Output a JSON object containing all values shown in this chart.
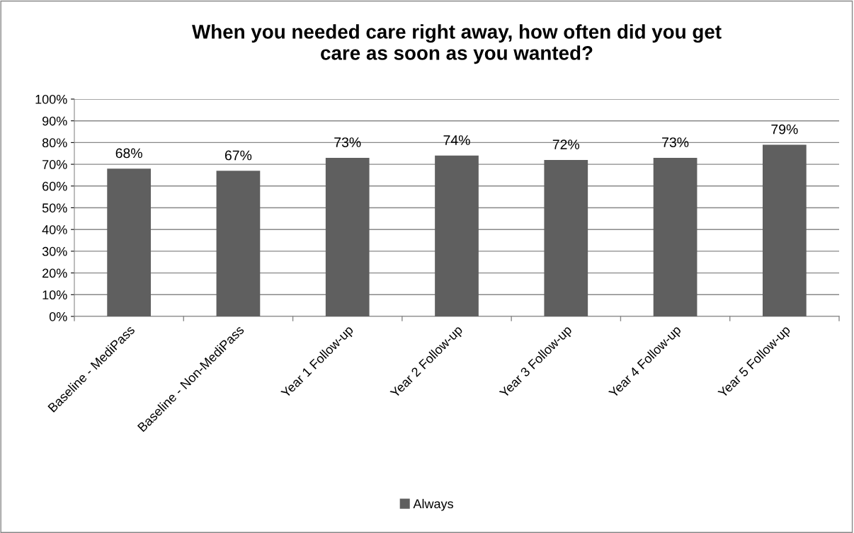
{
  "chart_data": {
    "type": "bar",
    "title": "When you needed care right away, how often did you get\ncare as soon as you wanted?",
    "categories": [
      "Baseline - MediPass",
      "Baseline - Non-MediPass",
      "Year 1 Follow-up",
      "Year 2 Follow-up",
      "Year 3 Follow-up",
      "Year 4 Follow-up",
      "Year 5 Follow-up"
    ],
    "series": [
      {
        "name": "Always",
        "color": "#5f5f5f",
        "values": [
          68,
          67,
          73,
          74,
          72,
          73,
          79
        ],
        "value_labels": [
          "68%",
          "67%",
          "73%",
          "74%",
          "72%",
          "73%",
          "79%"
        ]
      }
    ],
    "ylim": [
      0,
      100
    ],
    "yticks": [
      {
        "value": 0,
        "label": "0%"
      },
      {
        "value": 10,
        "label": "10%"
      },
      {
        "value": 20,
        "label": "20%"
      },
      {
        "value": 30,
        "label": "30%"
      },
      {
        "value": 40,
        "label": "40%"
      },
      {
        "value": 50,
        "label": "50%"
      },
      {
        "value": 60,
        "label": "60%"
      },
      {
        "value": 70,
        "label": "70%"
      },
      {
        "value": 80,
        "label": "80%"
      },
      {
        "value": 90,
        "label": "90%"
      },
      {
        "value": 100,
        "label": "100%"
      }
    ],
    "grid": "y",
    "legend": "bottom"
  }
}
